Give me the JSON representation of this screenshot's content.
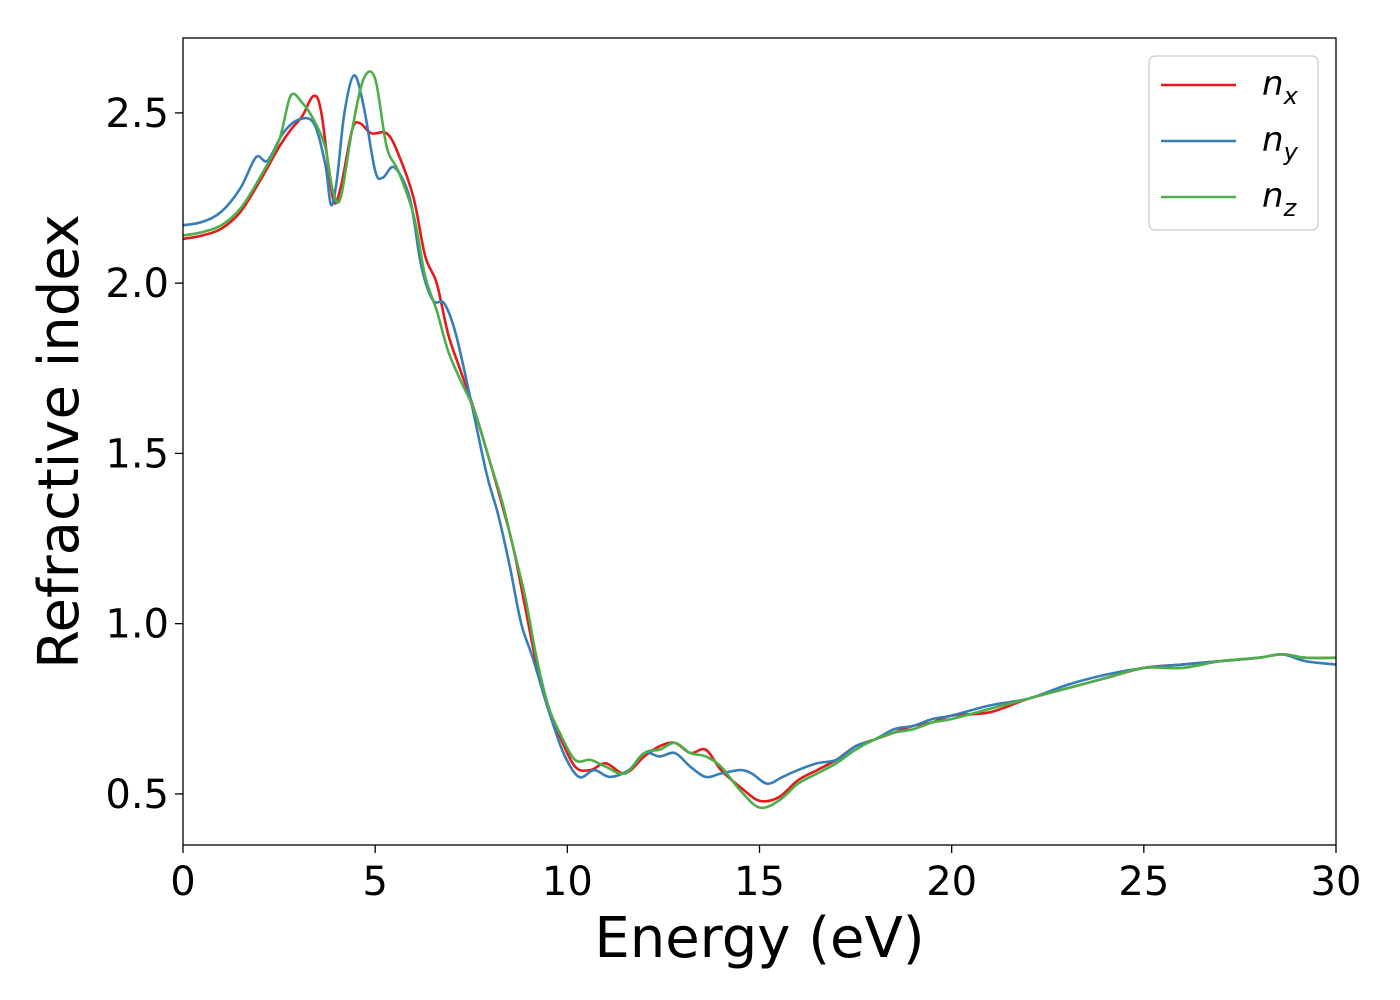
{
  "chart_data": {
    "type": "line",
    "title": "",
    "xlabel": "Energy (eV)",
    "ylabel": "Refractive index",
    "xlim": [
      0,
      30
    ],
    "ylim": [
      0.35,
      2.72
    ],
    "xticks": [
      0,
      5,
      10,
      15,
      20,
      25,
      30
    ],
    "xtick_labels": [
      "0",
      "5",
      "10",
      "15",
      "20",
      "25",
      "30"
    ],
    "yticks": [
      0.5,
      1.0,
      1.5,
      2.0,
      2.5
    ],
    "ytick_labels": [
      "0.5",
      "1.0",
      "1.5",
      "2.0",
      "2.5"
    ],
    "grid": false,
    "legend_position": "top-right",
    "series": [
      {
        "name": "n_x",
        "label_base": "n",
        "label_sub": "x",
        "color": "#e41a1c",
        "points": [
          [
            0,
            2.13
          ],
          [
            0.5,
            2.14
          ],
          [
            1.0,
            2.16
          ],
          [
            1.5,
            2.21
          ],
          [
            2.0,
            2.3
          ],
          [
            2.5,
            2.4
          ],
          [
            2.8,
            2.45
          ],
          [
            3.1,
            2.49
          ],
          [
            3.4,
            2.55
          ],
          [
            3.6,
            2.5
          ],
          [
            3.9,
            2.25
          ],
          [
            4.1,
            2.28
          ],
          [
            4.4,
            2.45
          ],
          [
            4.6,
            2.47
          ],
          [
            4.9,
            2.44
          ],
          [
            5.3,
            2.44
          ],
          [
            5.6,
            2.38
          ],
          [
            6.0,
            2.25
          ],
          [
            6.3,
            2.08
          ],
          [
            6.6,
            2.0
          ],
          [
            6.9,
            1.85
          ],
          [
            7.2,
            1.75
          ],
          [
            7.6,
            1.62
          ],
          [
            8.0,
            1.47
          ],
          [
            8.3,
            1.35
          ],
          [
            8.6,
            1.22
          ],
          [
            8.9,
            1.05
          ],
          [
            9.2,
            0.88
          ],
          [
            9.5,
            0.75
          ],
          [
            9.8,
            0.67
          ],
          [
            10.2,
            0.58
          ],
          [
            10.6,
            0.57
          ],
          [
            11.0,
            0.59
          ],
          [
            11.5,
            0.56
          ],
          [
            12.0,
            0.61
          ],
          [
            12.4,
            0.64
          ],
          [
            12.8,
            0.65
          ],
          [
            13.2,
            0.62
          ],
          [
            13.6,
            0.63
          ],
          [
            14.0,
            0.57
          ],
          [
            14.5,
            0.52
          ],
          [
            15.0,
            0.48
          ],
          [
            15.5,
            0.49
          ],
          [
            16.0,
            0.54
          ],
          [
            16.5,
            0.57
          ],
          [
            17.0,
            0.6
          ],
          [
            17.5,
            0.64
          ],
          [
            18.0,
            0.66
          ],
          [
            18.5,
            0.68
          ],
          [
            19.0,
            0.7
          ],
          [
            19.5,
            0.71
          ],
          [
            20.0,
            0.73
          ],
          [
            21.0,
            0.74
          ],
          [
            22.0,
            0.78
          ],
          [
            23.0,
            0.81
          ],
          [
            24.0,
            0.84
          ],
          [
            25.0,
            0.87
          ],
          [
            26.0,
            0.88
          ],
          [
            27.0,
            0.89
          ],
          [
            28.0,
            0.9
          ],
          [
            28.6,
            0.91
          ],
          [
            29.2,
            0.9
          ],
          [
            30.0,
            0.9
          ]
        ]
      },
      {
        "name": "n_y",
        "label_base": "n",
        "label_sub": "y",
        "color": "#377eb8",
        "points": [
          [
            0,
            2.17
          ],
          [
            0.5,
            2.18
          ],
          [
            1.0,
            2.21
          ],
          [
            1.5,
            2.28
          ],
          [
            1.9,
            2.37
          ],
          [
            2.2,
            2.36
          ],
          [
            2.6,
            2.44
          ],
          [
            3.0,
            2.48
          ],
          [
            3.4,
            2.47
          ],
          [
            3.7,
            2.35
          ],
          [
            3.85,
            2.23
          ],
          [
            4.0,
            2.3
          ],
          [
            4.2,
            2.5
          ],
          [
            4.45,
            2.61
          ],
          [
            4.7,
            2.52
          ],
          [
            5.0,
            2.33
          ],
          [
            5.2,
            2.31
          ],
          [
            5.5,
            2.34
          ],
          [
            5.9,
            2.25
          ],
          [
            6.2,
            2.05
          ],
          [
            6.5,
            1.95
          ],
          [
            6.8,
            1.94
          ],
          [
            7.1,
            1.85
          ],
          [
            7.5,
            1.65
          ],
          [
            7.9,
            1.44
          ],
          [
            8.2,
            1.32
          ],
          [
            8.5,
            1.17
          ],
          [
            8.8,
            1.0
          ],
          [
            9.1,
            0.9
          ],
          [
            9.5,
            0.75
          ],
          [
            9.9,
            0.62
          ],
          [
            10.3,
            0.55
          ],
          [
            10.7,
            0.57
          ],
          [
            11.1,
            0.55
          ],
          [
            11.6,
            0.57
          ],
          [
            12.0,
            0.62
          ],
          [
            12.4,
            0.61
          ],
          [
            12.8,
            0.62
          ],
          [
            13.2,
            0.58
          ],
          [
            13.6,
            0.55
          ],
          [
            14.0,
            0.56
          ],
          [
            14.5,
            0.57
          ],
          [
            14.8,
            0.56
          ],
          [
            15.2,
            0.53
          ],
          [
            15.6,
            0.55
          ],
          [
            16.0,
            0.57
          ],
          [
            16.5,
            0.59
          ],
          [
            17.0,
            0.6
          ],
          [
            17.5,
            0.64
          ],
          [
            18.0,
            0.66
          ],
          [
            18.5,
            0.69
          ],
          [
            19.0,
            0.7
          ],
          [
            19.5,
            0.72
          ],
          [
            20.0,
            0.73
          ],
          [
            21.0,
            0.76
          ],
          [
            22.0,
            0.78
          ],
          [
            23.0,
            0.82
          ],
          [
            24.0,
            0.85
          ],
          [
            25.0,
            0.87
          ],
          [
            26.0,
            0.88
          ],
          [
            27.0,
            0.89
          ],
          [
            28.0,
            0.9
          ],
          [
            28.6,
            0.91
          ],
          [
            29.2,
            0.89
          ],
          [
            30.0,
            0.88
          ]
        ]
      },
      {
        "name": "n_z",
        "label_base": "n",
        "label_sub": "z",
        "color": "#4daf4a",
        "points": [
          [
            0,
            2.14
          ],
          [
            0.5,
            2.15
          ],
          [
            1.0,
            2.17
          ],
          [
            1.5,
            2.22
          ],
          [
            2.0,
            2.31
          ],
          [
            2.5,
            2.42
          ],
          [
            2.8,
            2.55
          ],
          [
            3.1,
            2.53
          ],
          [
            3.4,
            2.48
          ],
          [
            3.7,
            2.4
          ],
          [
            3.9,
            2.27
          ],
          [
            4.1,
            2.25
          ],
          [
            4.4,
            2.45
          ],
          [
            4.7,
            2.6
          ],
          [
            5.0,
            2.6
          ],
          [
            5.3,
            2.4
          ],
          [
            5.6,
            2.33
          ],
          [
            6.0,
            2.2
          ],
          [
            6.3,
            2.02
          ],
          [
            6.6,
            1.92
          ],
          [
            6.9,
            1.8
          ],
          [
            7.2,
            1.72
          ],
          [
            7.6,
            1.62
          ],
          [
            8.0,
            1.47
          ],
          [
            8.3,
            1.36
          ],
          [
            8.6,
            1.22
          ],
          [
            8.9,
            1.08
          ],
          [
            9.2,
            0.9
          ],
          [
            9.5,
            0.76
          ],
          [
            9.8,
            0.68
          ],
          [
            10.2,
            0.6
          ],
          [
            10.6,
            0.6
          ],
          [
            11.0,
            0.58
          ],
          [
            11.5,
            0.56
          ],
          [
            12.0,
            0.62
          ],
          [
            12.4,
            0.63
          ],
          [
            12.8,
            0.65
          ],
          [
            13.2,
            0.62
          ],
          [
            13.6,
            0.61
          ],
          [
            14.0,
            0.58
          ],
          [
            14.5,
            0.51
          ],
          [
            15.0,
            0.46
          ],
          [
            15.5,
            0.48
          ],
          [
            16.0,
            0.53
          ],
          [
            16.5,
            0.56
          ],
          [
            17.0,
            0.59
          ],
          [
            17.5,
            0.63
          ],
          [
            18.0,
            0.66
          ],
          [
            18.5,
            0.68
          ],
          [
            19.0,
            0.69
          ],
          [
            19.5,
            0.71
          ],
          [
            20.0,
            0.72
          ],
          [
            21.0,
            0.75
          ],
          [
            22.0,
            0.78
          ],
          [
            23.0,
            0.81
          ],
          [
            24.0,
            0.84
          ],
          [
            25.0,
            0.87
          ],
          [
            26.0,
            0.87
          ],
          [
            27.0,
            0.89
          ],
          [
            28.0,
            0.9
          ],
          [
            28.6,
            0.91
          ],
          [
            29.2,
            0.9
          ],
          [
            30.0,
            0.9
          ]
        ]
      }
    ]
  }
}
